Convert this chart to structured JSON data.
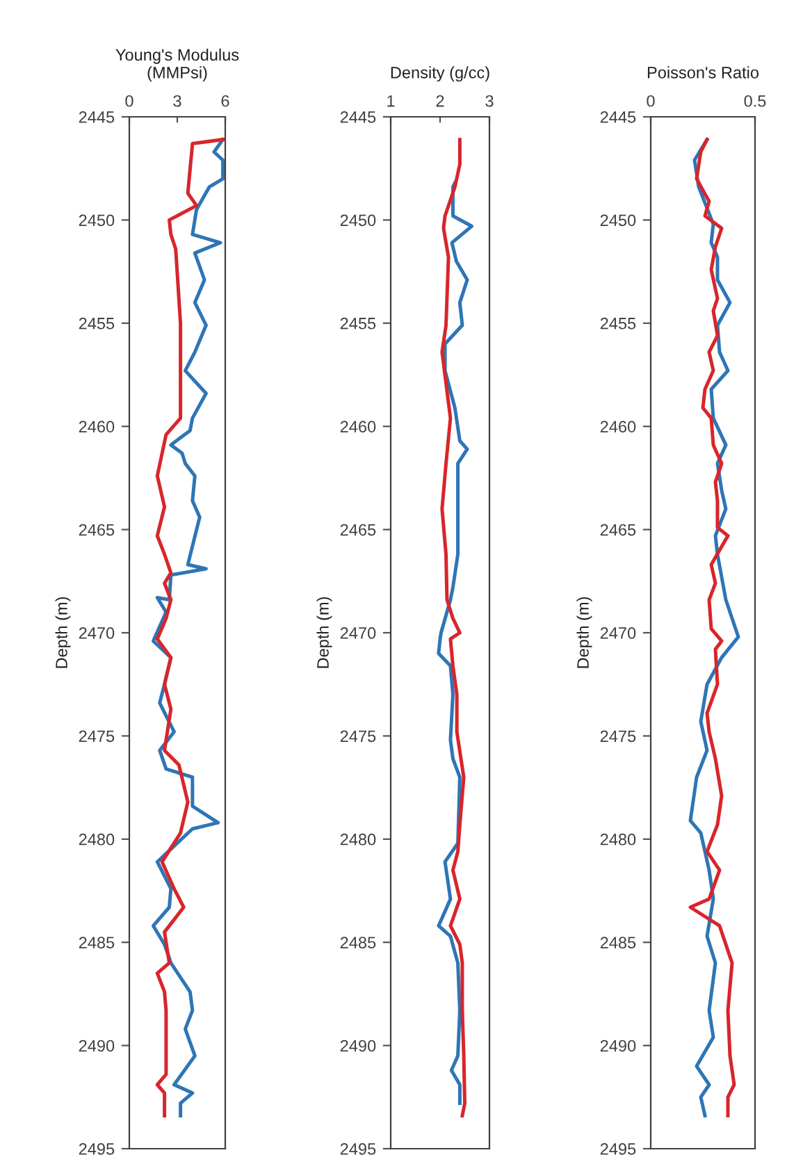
{
  "chart_data": [
    {
      "type": "line",
      "orientation": "horizontal",
      "title": "Young's Modulus\n(MMPsi)",
      "ylabel": "Depth (m)",
      "xlim": [
        0,
        6
      ],
      "xticks": [
        0,
        3,
        6
      ],
      "ylim": [
        2495,
        2445
      ],
      "yticks": [
        2445,
        2450,
        2455,
        2460,
        2465,
        2470,
        2475,
        2480,
        2485,
        2490,
        2495
      ],
      "grid": false,
      "series": [
        {
          "color": "#2e75b6",
          "x": [
            2446.1,
            2446.7,
            2447.1,
            2448.0,
            2448.4,
            2449.5,
            2450.7,
            2451.1,
            2451.6,
            2452.9,
            2454.0,
            2455.1,
            2456.4,
            2457.3,
            2458.4,
            2459.6,
            2460.2,
            2460.9,
            2461.3,
            2461.8,
            2462.4,
            2463.6,
            2464.4,
            2466.7,
            2466.9,
            2467.2,
            2468.4,
            2468.3,
            2469.0,
            2470.4,
            2471.2,
            2472.5,
            2473.4,
            2474.8,
            2475.7,
            2476.6,
            2477.0,
            2478.4,
            2479.2,
            2479.5,
            2481.1,
            2482.4,
            2483.3,
            2484.2,
            2485.1,
            2486.0,
            2487.4,
            2488.3,
            2489.2,
            2490.5,
            2491.9,
            2492.3,
            2492.8,
            2493.4
          ],
          "values": [
            5.85,
            5.3,
            5.85,
            5.85,
            5.0,
            4.2,
            3.95,
            5.7,
            4.1,
            4.7,
            4.1,
            4.8,
            4.1,
            3.5,
            4.8,
            3.95,
            3.8,
            2.6,
            3.3,
            3.5,
            4.1,
            3.95,
            4.4,
            3.66,
            4.8,
            2.6,
            2.5,
            1.75,
            2.3,
            1.5,
            2.6,
            2.2,
            1.9,
            2.8,
            1.9,
            2.3,
            3.95,
            3.95,
            5.55,
            3.95,
            1.75,
            2.6,
            2.5,
            1.5,
            2.2,
            2.6,
            3.8,
            3.95,
            3.5,
            4.1,
            2.8,
            3.95,
            3.2,
            3.2
          ]
        },
        {
          "color": "#d7262b",
          "x": [
            2446.1,
            2446.3,
            2448.7,
            2449.3,
            2450.0,
            2450.7,
            2451.4,
            2455.0,
            2459.6,
            2460.4,
            2462.4,
            2463.9,
            2465.3,
            2466.2,
            2467.1,
            2467.6,
            2468.4,
            2469.3,
            2470.3,
            2471.2,
            2472.5,
            2473.7,
            2475.7,
            2476.4,
            2478.2,
            2479.7,
            2481.1,
            2482.4,
            2483.3,
            2484.5,
            2486.0,
            2486.5,
            2487.4,
            2488.3,
            2491.4,
            2491.9,
            2492.3,
            2493.4
          ],
          "values": [
            5.85,
            3.95,
            3.66,
            4.2,
            2.5,
            2.6,
            2.9,
            3.2,
            3.2,
            2.3,
            1.75,
            2.2,
            1.75,
            2.2,
            2.6,
            2.2,
            2.6,
            2.3,
            1.75,
            2.6,
            2.2,
            2.6,
            2.2,
            3.1,
            3.66,
            3.2,
            2.05,
            2.8,
            3.4,
            2.2,
            2.5,
            1.75,
            2.2,
            2.3,
            2.3,
            1.75,
            2.2,
            2.2
          ]
        }
      ]
    },
    {
      "type": "line",
      "orientation": "horizontal",
      "title": "Density (g/cc)",
      "ylabel": "Depth (m)",
      "xlim": [
        1,
        3
      ],
      "xticks": [
        1,
        2,
        3
      ],
      "ylim": [
        2495,
        2445
      ],
      "yticks": [
        2445,
        2450,
        2455,
        2460,
        2465,
        2470,
        2475,
        2480,
        2485,
        2490,
        2495
      ],
      "grid": false,
      "series": [
        {
          "color": "#2e75b6",
          "x": [
            2448.2,
            2448.4,
            2449.8,
            2450.3,
            2451.1,
            2452.0,
            2452.9,
            2454.0,
            2455.1,
            2456.0,
            2457.3,
            2459.1,
            2460.7,
            2461.1,
            2461.8,
            2464.0,
            2466.2,
            2467.8,
            2468.4,
            2470.0,
            2470.3,
            2471.0,
            2471.6,
            2473.0,
            2475.2,
            2476.1,
            2477.0,
            2480.2,
            2481.1,
            2482.9,
            2484.2,
            2484.7,
            2486.0,
            2488.3,
            2490.5,
            2491.2,
            2491.9,
            2492.8
          ],
          "values": [
            2.3,
            2.26,
            2.26,
            2.64,
            2.24,
            2.33,
            2.55,
            2.4,
            2.45,
            2.1,
            2.1,
            2.3,
            2.4,
            2.55,
            2.36,
            2.36,
            2.36,
            2.26,
            2.21,
            2.02,
            2.0,
            1.97,
            2.21,
            2.26,
            2.21,
            2.26,
            2.4,
            2.36,
            2.1,
            2.21,
            1.97,
            2.21,
            2.36,
            2.4,
            2.36,
            2.23,
            2.4,
            2.4
          ]
        },
        {
          "color": "#d7262b",
          "x": [
            2446.1,
            2447.3,
            2448.4,
            2449.8,
            2450.4,
            2451.8,
            2455.1,
            2456.4,
            2459.6,
            2461.8,
            2464.0,
            2466.2,
            2468.4,
            2469.3,
            2470.0,
            2470.3,
            2471.6,
            2473.0,
            2474.8,
            2477.0,
            2479.3,
            2480.6,
            2481.5,
            2482.9,
            2484.2,
            2485.1,
            2486.0,
            2488.3,
            2490.5,
            2492.8,
            2493.4
          ],
          "values": [
            2.4,
            2.4,
            2.3,
            2.1,
            2.07,
            2.17,
            2.12,
            2.04,
            2.21,
            2.12,
            2.04,
            2.12,
            2.14,
            2.26,
            2.4,
            2.21,
            2.26,
            2.34,
            2.34,
            2.48,
            2.4,
            2.36,
            2.26,
            2.4,
            2.21,
            2.4,
            2.45,
            2.45,
            2.48,
            2.5,
            2.45
          ]
        }
      ]
    },
    {
      "type": "line",
      "orientation": "horizontal",
      "title": "Poisson's Ratio",
      "ylabel": "Depth (m)",
      "xlim": [
        0,
        0.5
      ],
      "xticks": [
        0,
        0.5
      ],
      "ylim": [
        2495,
        2445
      ],
      "yticks": [
        2445,
        2450,
        2455,
        2460,
        2465,
        2470,
        2475,
        2480,
        2485,
        2490,
        2495
      ],
      "grid": false,
      "series": [
        {
          "color": "#2e75b6",
          "x": [
            2446.1,
            2447.1,
            2448.4,
            2450.2,
            2451.1,
            2451.8,
            2452.9,
            2454.0,
            2455.1,
            2456.4,
            2457.3,
            2458.2,
            2459.6,
            2460.9,
            2461.8,
            2463.1,
            2464.0,
            2465.3,
            2466.2,
            2467.3,
            2468.4,
            2470.2,
            2471.2,
            2472.5,
            2474.3,
            2475.7,
            2477.0,
            2479.1,
            2479.7,
            2481.5,
            2482.9,
            2484.7,
            2486.0,
            2488.3,
            2489.6,
            2491.0,
            2491.9,
            2492.5,
            2493.4
          ],
          "values": [
            0.27,
            0.21,
            0.23,
            0.3,
            0.29,
            0.32,
            0.32,
            0.38,
            0.32,
            0.33,
            0.37,
            0.29,
            0.3,
            0.36,
            0.32,
            0.34,
            0.36,
            0.31,
            0.32,
            0.34,
            0.36,
            0.42,
            0.34,
            0.27,
            0.24,
            0.27,
            0.22,
            0.19,
            0.24,
            0.28,
            0.3,
            0.27,
            0.31,
            0.28,
            0.3,
            0.22,
            0.28,
            0.24,
            0.26
          ]
        },
        {
          "color": "#d7262b",
          "x": [
            2446.1,
            2446.7,
            2448.0,
            2449.1,
            2449.8,
            2450.4,
            2451.3,
            2452.4,
            2453.8,
            2454.4,
            2455.6,
            2456.4,
            2457.3,
            2458.2,
            2459.1,
            2459.6,
            2460.9,
            2461.8,
            2462.7,
            2463.6,
            2464.9,
            2465.3,
            2466.7,
            2467.6,
            2468.4,
            2469.8,
            2470.4,
            2470.8,
            2472.5,
            2473.9,
            2474.8,
            2476.1,
            2477.9,
            2479.3,
            2480.6,
            2481.5,
            2482.9,
            2483.3,
            2484.2,
            2486.0,
            2488.3,
            2490.5,
            2491.9,
            2492.5,
            2493.4
          ],
          "values": [
            0.27,
            0.24,
            0.22,
            0.28,
            0.26,
            0.34,
            0.31,
            0.29,
            0.32,
            0.3,
            0.32,
            0.28,
            0.3,
            0.26,
            0.25,
            0.29,
            0.3,
            0.34,
            0.31,
            0.32,
            0.32,
            0.37,
            0.29,
            0.31,
            0.28,
            0.29,
            0.34,
            0.31,
            0.32,
            0.27,
            0.28,
            0.31,
            0.34,
            0.32,
            0.27,
            0.33,
            0.28,
            0.19,
            0.33,
            0.39,
            0.37,
            0.38,
            0.4,
            0.37,
            0.37
          ]
        }
      ]
    }
  ]
}
